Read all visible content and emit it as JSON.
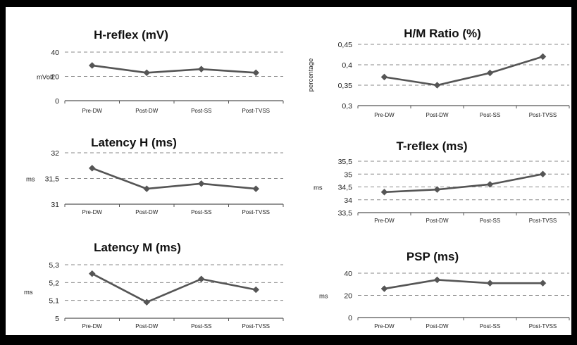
{
  "chart_data": [
    {
      "type": "line",
      "title": "H-reflex (mV)",
      "ylabel": "mVolt",
      "categories": [
        "Pre-DW",
        "Post-DW",
        "Post-SS",
        "Post-TVSS"
      ],
      "values": [
        29,
        23,
        26,
        23
      ],
      "ylim": [
        0,
        40
      ],
      "yticks": [
        0,
        20,
        40
      ],
      "ytick_labels": [
        "0",
        "20",
        "40"
      ],
      "color": "#555555"
    },
    {
      "type": "line",
      "title": "H/M Ratio (%)",
      "ylabel": "percentage",
      "categories": [
        "Pre-DW",
        "Post-DW",
        "Post-SS",
        "Post-TVSS"
      ],
      "values": [
        0.37,
        0.35,
        0.38,
        0.42
      ],
      "ylim": [
        0.3,
        0.45
      ],
      "yticks": [
        0.3,
        0.35,
        0.4,
        0.45
      ],
      "ytick_labels": [
        "0,3",
        "0,35",
        "0,4",
        "0,45"
      ],
      "color": "#555555"
    },
    {
      "type": "line",
      "title": "Latency H (ms)",
      "ylabel": "ms",
      "categories": [
        "Pre-DW",
        "Post-DW",
        "Post-SS",
        "Post-TVSS"
      ],
      "values": [
        31.7,
        31.3,
        31.4,
        31.3
      ],
      "ylim": [
        31,
        32
      ],
      "yticks": [
        31,
        31.5,
        32
      ],
      "ytick_labels": [
        "31",
        "31,5",
        "32"
      ],
      "color": "#555555"
    },
    {
      "type": "line",
      "title": "T-reflex (ms)",
      "ylabel": "ms",
      "categories": [
        "Pre-DW",
        "Post-DW",
        "Post-SS",
        "Post-TVSS"
      ],
      "values": [
        34.3,
        34.4,
        34.6,
        35.0
      ],
      "ylim": [
        33.5,
        35.5
      ],
      "yticks": [
        33.5,
        34,
        34.5,
        35,
        35.5
      ],
      "ytick_labels": [
        "33,5",
        "34",
        "34,5",
        "35",
        "35,5"
      ],
      "color": "#555555"
    },
    {
      "type": "line",
      "title": "Latency M (ms)",
      "ylabel": "ms",
      "categories": [
        "Pre-DW",
        "Post-DW",
        "Post-SS",
        "Post-TVSS"
      ],
      "values": [
        5.25,
        5.09,
        5.22,
        5.16
      ],
      "ylim": [
        5.0,
        5.3
      ],
      "yticks": [
        5.0,
        5.1,
        5.2,
        5.3
      ],
      "ytick_labels": [
        "5",
        "5,1",
        "5,2",
        "5,3"
      ],
      "color": "#555555"
    },
    {
      "type": "line",
      "title": "PSP (ms)",
      "ylabel": "ms",
      "categories": [
        "Pre-DW",
        "Post-DW",
        "Post-SS",
        "Post-TVSS"
      ],
      "values": [
        26,
        34,
        31,
        31
      ],
      "ylim": [
        0,
        40
      ],
      "yticks": [
        0,
        20,
        40
      ],
      "ytick_labels": [
        "0",
        "20",
        "40"
      ],
      "color": "#555555"
    }
  ]
}
